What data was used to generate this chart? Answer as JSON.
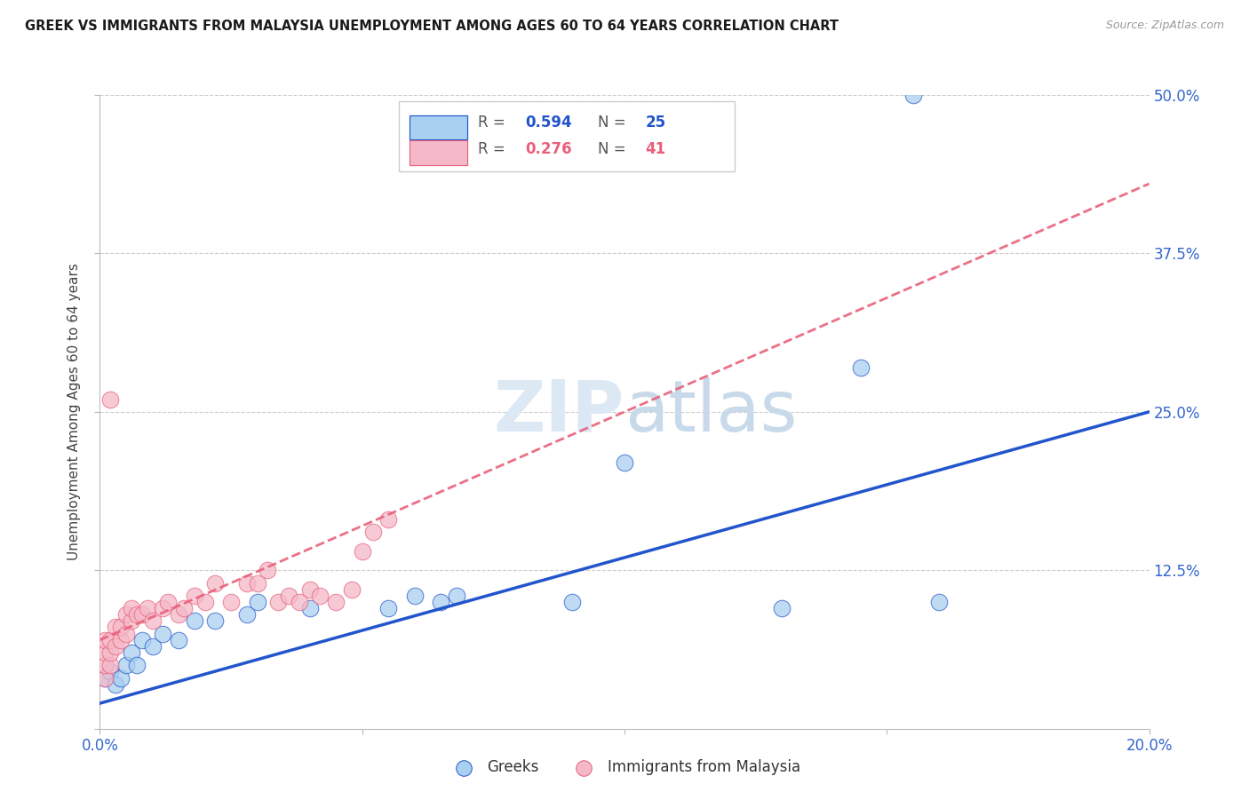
{
  "title": "GREEK VS IMMIGRANTS FROM MALAYSIA UNEMPLOYMENT AMONG AGES 60 TO 64 YEARS CORRELATION CHART",
  "source": "Source: ZipAtlas.com",
  "ylabel": "Unemployment Among Ages 60 to 64 years",
  "xlim": [
    0.0,
    0.2
  ],
  "ylim": [
    0.0,
    0.5
  ],
  "xlabel_vals": [
    0.0,
    0.05,
    0.1,
    0.15,
    0.2
  ],
  "ylabel_vals": [
    0.0,
    0.125,
    0.25,
    0.375,
    0.5
  ],
  "xlabel_ticks": [
    "0.0%",
    "",
    "",
    "",
    "20.0%"
  ],
  "ylabel_right_ticks": [
    "",
    "12.5%",
    "25.0%",
    "37.5%",
    "50.0%"
  ],
  "legend_r_greek": "0.594",
  "legend_n_greek": "25",
  "legend_r_malaysia": "0.276",
  "legend_n_malaysia": "41",
  "greek_color": "#a8d0f0",
  "malaysia_color": "#f5b8c8",
  "trendline_greek_color": "#2255cc",
  "trendline_malaysia_color": "#e8607a",
  "watermark_zip": "ZIP",
  "watermark_atlas": "atlas",
  "watermark_color": "#dce8f4",
  "greek_x": [
    0.001,
    0.002,
    0.003,
    0.004,
    0.005,
    0.006,
    0.007,
    0.008,
    0.01,
    0.012,
    0.015,
    0.018,
    0.022,
    0.028,
    0.03,
    0.04,
    0.055,
    0.06,
    0.065,
    0.068,
    0.09,
    0.1,
    0.13,
    0.145,
    0.16
  ],
  "greek_y": [
    0.04,
    0.045,
    0.035,
    0.04,
    0.05,
    0.06,
    0.05,
    0.07,
    0.065,
    0.075,
    0.07,
    0.085,
    0.085,
    0.09,
    0.1,
    0.095,
    0.095,
    0.105,
    0.1,
    0.105,
    0.1,
    0.21,
    0.095,
    0.285,
    0.1
  ],
  "greek_outlier_x": [
    0.155
  ],
  "greek_outlier_y": [
    0.5
  ],
  "malaysia_x": [
    0.001,
    0.001,
    0.001,
    0.001,
    0.002,
    0.002,
    0.002,
    0.003,
    0.003,
    0.004,
    0.004,
    0.005,
    0.005,
    0.006,
    0.006,
    0.007,
    0.008,
    0.009,
    0.01,
    0.012,
    0.013,
    0.015,
    0.016,
    0.018,
    0.02,
    0.022,
    0.025,
    0.028,
    0.03,
    0.032,
    0.034,
    0.036,
    0.038,
    0.04,
    0.042,
    0.045,
    0.048,
    0.05,
    0.052,
    0.055,
    0.002
  ],
  "malaysia_y": [
    0.04,
    0.05,
    0.06,
    0.07,
    0.05,
    0.06,
    0.07,
    0.065,
    0.08,
    0.07,
    0.08,
    0.075,
    0.09,
    0.085,
    0.095,
    0.09,
    0.09,
    0.095,
    0.085,
    0.095,
    0.1,
    0.09,
    0.095,
    0.105,
    0.1,
    0.115,
    0.1,
    0.115,
    0.115,
    0.125,
    0.1,
    0.105,
    0.1,
    0.11,
    0.105,
    0.1,
    0.11,
    0.14,
    0.155,
    0.165,
    0.26
  ]
}
